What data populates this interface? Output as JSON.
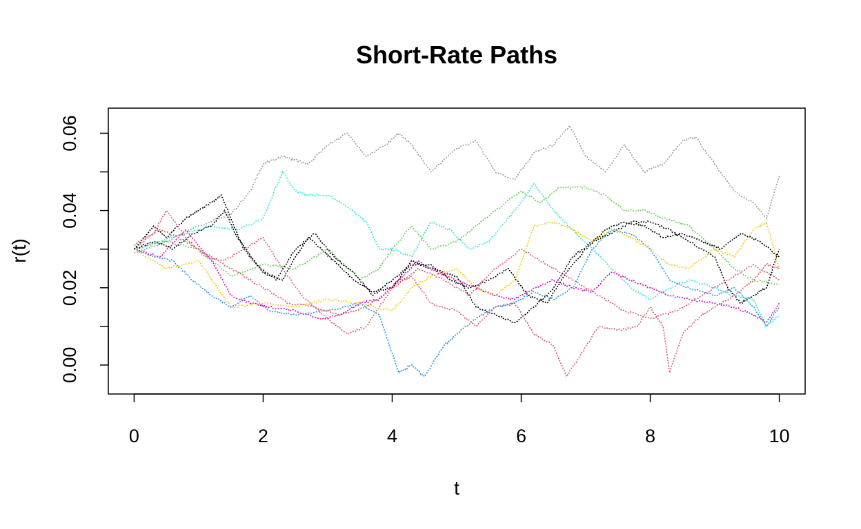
{
  "chart_data": {
    "type": "line",
    "title": "Short-Rate Paths",
    "xlabel": "t",
    "ylabel": "r(t)",
    "xlim": [
      -0.4,
      10.4
    ],
    "ylim": [
      -0.0075,
      0.0665
    ],
    "x_ticks": [
      "0",
      "2",
      "4",
      "6",
      "8",
      "10"
    ],
    "x_tick_values": [
      0,
      2,
      4,
      6,
      8,
      10
    ],
    "y_ticks": [
      "0.00",
      "0.02",
      "0.04",
      "0.06"
    ],
    "y_tick_values": [
      0,
      0.02,
      0.04,
      0.06
    ],
    "y_minor_tick_values": [
      0.01,
      0.03,
      0.05
    ],
    "line_style": "dotted",
    "grid": false,
    "legend": "none",
    "series": [
      {
        "color": "#000000",
        "x": [
          0,
          0.3,
          0.5,
          0.8,
          1.0,
          1.2,
          1.35,
          1.5,
          1.7,
          2.0,
          2.3,
          2.5,
          2.7,
          2.9,
          3.1,
          3.4,
          3.7,
          4.0,
          4.3,
          4.6,
          5.0,
          5.3,
          5.6,
          5.9,
          6.2,
          6.5,
          6.8,
          7.1,
          7.4,
          7.7,
          8.0,
          8.3,
          8.6,
          9.0,
          9.2,
          9.4,
          9.6,
          9.8,
          10.0
        ],
        "values": [
          0.03,
          0.036,
          0.033,
          0.038,
          0.04,
          0.042,
          0.044,
          0.038,
          0.03,
          0.024,
          0.022,
          0.028,
          0.033,
          0.03,
          0.027,
          0.022,
          0.019,
          0.02,
          0.027,
          0.025,
          0.023,
          0.015,
          0.013,
          0.011,
          0.015,
          0.02,
          0.028,
          0.032,
          0.034,
          0.037,
          0.037,
          0.035,
          0.032,
          0.028,
          0.02,
          0.016,
          0.018,
          0.02,
          0.03
        ]
      },
      {
        "color": "#df536b",
        "x": [
          0,
          0.3,
          0.5,
          0.8,
          1.1,
          1.4,
          1.7,
          2.0,
          2.3,
          2.6,
          3.0,
          3.3,
          3.6,
          4.0,
          4.3,
          4.6,
          5.0,
          5.3,
          5.6,
          5.9,
          6.2,
          6.5,
          6.7,
          6.9,
          7.2,
          7.5,
          7.8,
          8.0,
          8.2,
          8.3,
          8.5,
          8.8,
          9.0,
          9.3,
          9.6,
          9.8,
          10.0
        ],
        "values": [
          0.03,
          0.034,
          0.04,
          0.033,
          0.028,
          0.027,
          0.03,
          0.033,
          0.025,
          0.018,
          0.012,
          0.008,
          0.01,
          0.02,
          0.023,
          0.016,
          0.014,
          0.01,
          0.015,
          0.016,
          0.008,
          0.005,
          -0.003,
          0.002,
          0.01,
          0.009,
          0.01,
          0.015,
          0.01,
          -0.002,
          0.008,
          0.013,
          0.015,
          0.018,
          0.022,
          0.026,
          0.025
        ]
      },
      {
        "color": "#61d04f",
        "x": [
          0,
          0.5,
          1.0,
          1.5,
          2.0,
          2.5,
          3.0,
          3.5,
          3.8,
          4.0,
          4.3,
          4.6,
          5.0,
          5.3,
          5.6,
          6.0,
          6.3,
          6.6,
          7.0,
          7.3,
          7.6,
          7.9,
          8.2,
          8.6,
          9.0,
          9.3,
          9.6,
          10.0
        ],
        "values": [
          0.03,
          0.032,
          0.03,
          0.023,
          0.026,
          0.025,
          0.03,
          0.022,
          0.025,
          0.03,
          0.036,
          0.03,
          0.032,
          0.036,
          0.04,
          0.045,
          0.042,
          0.046,
          0.046,
          0.044,
          0.04,
          0.04,
          0.038,
          0.036,
          0.03,
          0.025,
          0.022,
          0.021
        ]
      },
      {
        "color": "#2297e6",
        "x": [
          0,
          0.3,
          0.6,
          0.9,
          1.2,
          1.5,
          1.8,
          2.1,
          2.5,
          3.0,
          3.5,
          3.8,
          4.0,
          4.1,
          4.3,
          4.5,
          4.8,
          5.0,
          5.3,
          5.6,
          5.9,
          6.2,
          6.5,
          6.8,
          7.1,
          7.4,
          7.7,
          8.0,
          8.3,
          8.6,
          9.0,
          9.3,
          9.6,
          9.8,
          10.0
        ],
        "values": [
          0.03,
          0.028,
          0.027,
          0.022,
          0.018,
          0.015,
          0.018,
          0.014,
          0.013,
          0.014,
          0.016,
          0.013,
          0.003,
          -0.002,
          0.0,
          -0.003,
          0.005,
          0.008,
          0.012,
          0.015,
          0.016,
          0.019,
          0.017,
          0.02,
          0.03,
          0.035,
          0.034,
          0.03,
          0.022,
          0.02,
          0.018,
          0.02,
          0.015,
          0.01,
          0.015
        ]
      },
      {
        "color": "#28e2e5",
        "x": [
          0,
          0.4,
          0.8,
          1.2,
          1.6,
          2.0,
          2.3,
          2.5,
          2.7,
          3.0,
          3.3,
          3.6,
          3.8,
          4.0,
          4.3,
          4.6,
          4.9,
          5.2,
          5.5,
          5.8,
          6.0,
          6.2,
          6.5,
          6.8,
          7.1,
          7.4,
          7.7,
          8.0,
          8.3,
          8.6,
          9.0,
          9.3,
          9.6,
          9.8,
          10.0
        ],
        "values": [
          0.03,
          0.032,
          0.034,
          0.036,
          0.035,
          0.038,
          0.05,
          0.045,
          0.044,
          0.044,
          0.041,
          0.037,
          0.03,
          0.03,
          0.028,
          0.037,
          0.035,
          0.03,
          0.032,
          0.038,
          0.042,
          0.047,
          0.04,
          0.035,
          0.03,
          0.025,
          0.02,
          0.017,
          0.02,
          0.022,
          0.02,
          0.018,
          0.017,
          0.01,
          0.013
        ]
      },
      {
        "color": "#cd0bbc",
        "x": [
          0,
          0.4,
          0.8,
          1.2,
          1.5,
          1.8,
          2.1,
          2.5,
          2.9,
          3.2,
          3.5,
          3.8,
          4.1,
          4.4,
          4.7,
          5.0,
          5.3,
          5.6,
          5.9,
          6.2,
          6.5,
          6.8,
          7.1,
          7.4,
          7.7,
          8.0,
          8.3,
          8.6,
          9.0,
          9.3,
          9.6,
          9.8,
          10.0
        ],
        "values": [
          0.03,
          0.028,
          0.035,
          0.027,
          0.018,
          0.016,
          0.015,
          0.014,
          0.012,
          0.013,
          0.016,
          0.017,
          0.022,
          0.027,
          0.024,
          0.022,
          0.02,
          0.018,
          0.017,
          0.02,
          0.022,
          0.02,
          0.019,
          0.024,
          0.022,
          0.02,
          0.018,
          0.017,
          0.016,
          0.015,
          0.013,
          0.011,
          0.016
        ]
      },
      {
        "color": "#f5c710",
        "x": [
          0,
          0.5,
          1.0,
          1.5,
          2.0,
          2.5,
          3.0,
          3.5,
          4.0,
          4.3,
          4.6,
          5.0,
          5.3,
          5.6,
          5.9,
          6.2,
          6.5,
          6.8,
          7.1,
          7.4,
          7.7,
          8.0,
          8.3,
          8.6,
          9.0,
          9.3,
          9.6,
          9.8,
          10.0
        ],
        "values": [
          0.03,
          0.025,
          0.027,
          0.015,
          0.016,
          0.015,
          0.017,
          0.016,
          0.014,
          0.02,
          0.023,
          0.025,
          0.02,
          0.018,
          0.022,
          0.036,
          0.037,
          0.035,
          0.032,
          0.035,
          0.033,
          0.03,
          0.026,
          0.025,
          0.03,
          0.028,
          0.035,
          0.037,
          0.025
        ]
      },
      {
        "color": "#9e9e9e",
        "x": [
          0,
          0.5,
          1.0,
          1.5,
          1.8,
          2.0,
          2.3,
          2.5,
          2.7,
          3.0,
          3.3,
          3.6,
          3.9,
          4.1,
          4.3,
          4.6,
          5.0,
          5.3,
          5.6,
          5.9,
          6.2,
          6.5,
          6.75,
          7.0,
          7.3,
          7.6,
          7.9,
          8.2,
          8.5,
          8.7,
          9.0,
          9.3,
          9.6,
          9.8,
          10.0
        ],
        "values": [
          0.029,
          0.032,
          0.036,
          0.039,
          0.045,
          0.052,
          0.054,
          0.053,
          0.052,
          0.057,
          0.06,
          0.054,
          0.057,
          0.06,
          0.057,
          0.05,
          0.056,
          0.058,
          0.05,
          0.048,
          0.055,
          0.057,
          0.062,
          0.054,
          0.05,
          0.057,
          0.05,
          0.052,
          0.058,
          0.059,
          0.052,
          0.045,
          0.042,
          0.038,
          0.049
        ]
      },
      {
        "color": "#000000",
        "x": [
          0,
          0.3,
          0.6,
          0.9,
          1.2,
          1.4,
          1.6,
          1.9,
          2.2,
          2.5,
          2.8,
          3.1,
          3.4,
          3.7,
          4.0,
          4.3,
          4.6,
          4.9,
          5.2,
          5.5,
          5.8,
          6.1,
          6.4,
          6.7,
          7.0,
          7.3,
          7.6,
          7.9,
          8.2,
          8.5,
          8.8,
          9.1,
          9.4,
          9.7,
          10.0
        ],
        "values": [
          0.03,
          0.032,
          0.03,
          0.034,
          0.036,
          0.04,
          0.033,
          0.026,
          0.022,
          0.03,
          0.034,
          0.028,
          0.024,
          0.018,
          0.022,
          0.026,
          0.026,
          0.022,
          0.02,
          0.022,
          0.025,
          0.018,
          0.016,
          0.024,
          0.03,
          0.035,
          0.037,
          0.036,
          0.033,
          0.034,
          0.032,
          0.03,
          0.034,
          0.032,
          0.028
        ]
      },
      {
        "color": "#df536b",
        "x": [
          0,
          0.4,
          0.8,
          1.2,
          1.6,
          2.0,
          2.4,
          2.8,
          3.2,
          3.6,
          4.0,
          4.4,
          4.8,
          5.2,
          5.6,
          6.0,
          6.4,
          6.8,
          7.2,
          7.6,
          8.0,
          8.4,
          8.8,
          9.2,
          9.6,
          10.0
        ],
        "values": [
          0.031,
          0.035,
          0.032,
          0.028,
          0.024,
          0.02,
          0.016,
          0.015,
          0.013,
          0.015,
          0.02,
          0.025,
          0.022,
          0.018,
          0.025,
          0.03,
          0.026,
          0.022,
          0.018,
          0.014,
          0.012,
          0.014,
          0.018,
          0.022,
          0.026,
          0.022
        ]
      }
    ]
  }
}
